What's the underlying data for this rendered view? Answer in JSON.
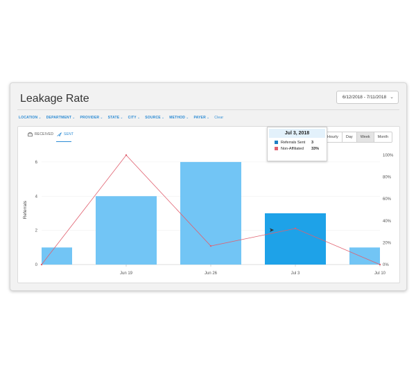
{
  "title": "Leakage Rate",
  "date_range": "6/12/2018 - 7/11/2018",
  "filters": [
    "LOCATION",
    "DEPARTMENT",
    "PROVIDER",
    "STATE",
    "CITY",
    "SOURCE",
    "METHOD",
    "PAYER"
  ],
  "clear_label": "Clear",
  "tabs": {
    "received": "RECEIVED",
    "sent": "SENT"
  },
  "ranges": [
    "Hourly",
    "Day",
    "Week",
    "Month"
  ],
  "active_range": "Week",
  "colors": {
    "bar": "#72c5f5",
    "bar_highlight": "#1ea2e8",
    "line": "#e0606f",
    "accent": "#2a8ad4"
  },
  "chart_data": {
    "type": "bar",
    "ylabel": "Referrals",
    "x_ticks": [
      "Jun 19",
      "Jun 26",
      "Jul 3",
      "Jul 10"
    ],
    "y_ticks": [
      "0",
      "2",
      "4",
      "6"
    ],
    "y2_ticks": [
      "0%",
      "20%",
      "40%",
      "60%",
      "80%",
      "100%"
    ],
    "ylim": [
      0,
      6.4
    ],
    "y2lim": [
      0,
      100
    ],
    "series": [
      {
        "name": "Referrals Sent",
        "type": "bar",
        "values": [
          1,
          4,
          6,
          3,
          1
        ]
      },
      {
        "name": "Non-Affiliated",
        "type": "line",
        "axis": "right",
        "values": [
          0,
          100,
          17,
          33,
          0
        ]
      }
    ],
    "highlight_index": 3,
    "tooltip": {
      "title": "Jul 3, 2018",
      "rows": [
        {
          "label": "Referrals Sent",
          "value": "3"
        },
        {
          "label": "Non-Affiliated",
          "value": "33%"
        }
      ]
    }
  }
}
